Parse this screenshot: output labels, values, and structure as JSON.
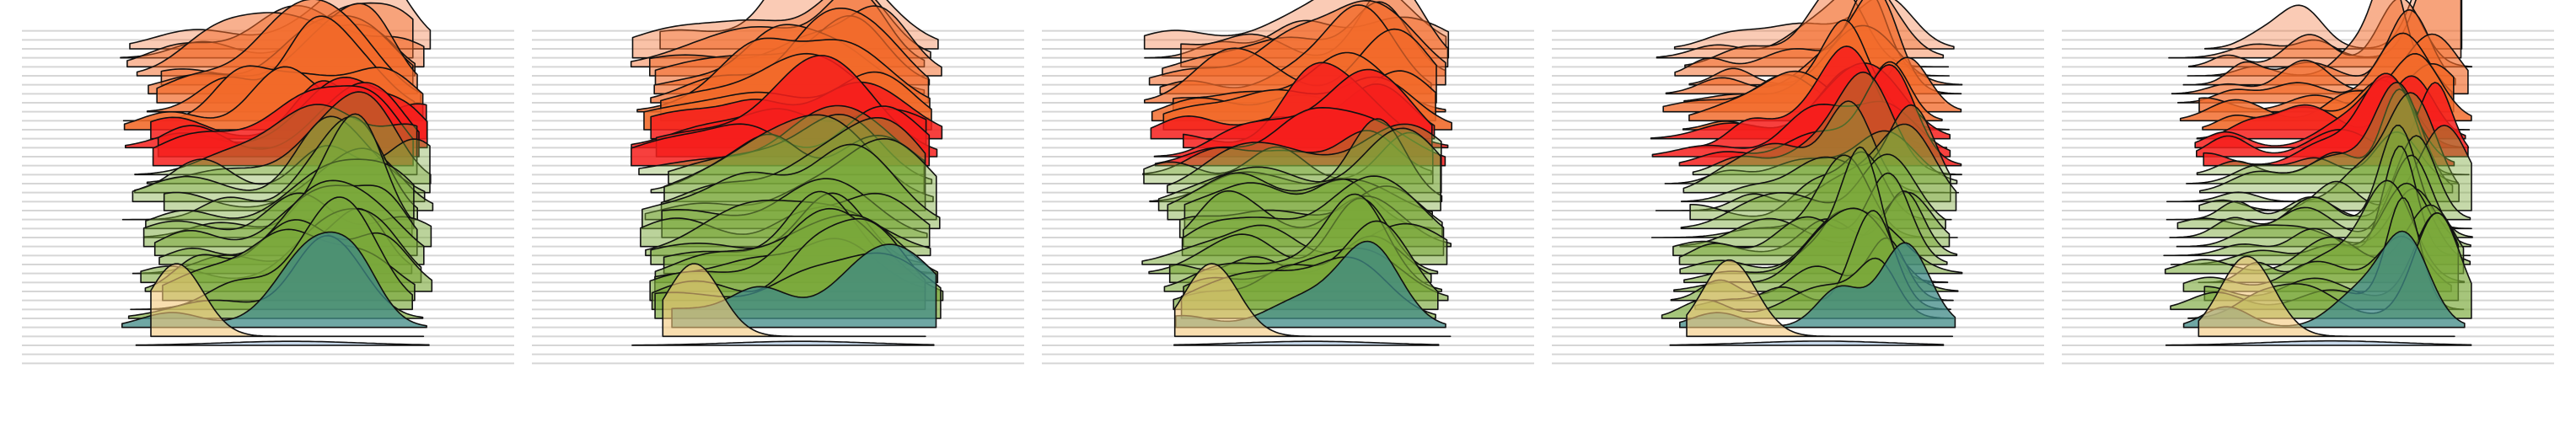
{
  "chart_data": {
    "type": "area",
    "variant": "ridgeline",
    "title": "",
    "xlabel": "",
    "ylabel": "",
    "grid": true,
    "legend": "none",
    "palette": {
      "orange": "#f26a2a",
      "red": "#f61f1c",
      "green": "#7aa83a",
      "teal": "#3f8a86",
      "sand": "#f3c87a",
      "blue": "#8fb1d6",
      "gridline": "#d6d6d6",
      "outline": "#111111"
    },
    "band_pattern": [
      "orange",
      "orange",
      "orange",
      "orange",
      "orange",
      "orange",
      "orange",
      "orange",
      "orange",
      "orange",
      "red",
      "red",
      "red",
      "red",
      "green",
      "green",
      "green",
      "green",
      "green",
      "green",
      "green",
      "green",
      "green",
      "green",
      "green",
      "green",
      "green",
      "green",
      "green",
      "green",
      "green",
      "teal",
      "sand",
      "blue"
    ],
    "panels": [
      {
        "xlim": [
          0,
          100
        ],
        "peak_scale": 1.0,
        "base": [
          {
            "mu": 62,
            "sd": 9,
            "h": 0.95
          },
          {
            "mu": 32,
            "sd": 8,
            "h": 0.35
          },
          {
            "mu": 80,
            "sd": 7,
            "h": 0.55
          }
        ]
      },
      {
        "xlim": [
          0,
          100
        ],
        "peak_scale": 1.0,
        "base": [
          {
            "mu": 70,
            "sd": 10,
            "h": 0.95
          },
          {
            "mu": 30,
            "sd": 12,
            "h": 0.35
          },
          {
            "mu": 50,
            "sd": 8,
            "h": 0.4
          }
        ]
      },
      {
        "xlim": [
          0,
          100
        ],
        "peak_scale": 1.0,
        "base": [
          {
            "mu": 72,
            "sd": 9,
            "h": 0.95
          },
          {
            "mu": 45,
            "sd": 9,
            "h": 0.45
          },
          {
            "mu": 25,
            "sd": 7,
            "h": 0.25
          }
        ]
      },
      {
        "xlim": [
          0,
          100
        ],
        "peak_scale": 1.05,
        "base": [
          {
            "mu": 70,
            "sd": 6,
            "h": 1.0
          },
          {
            "mu": 52,
            "sd": 7,
            "h": 0.5
          },
          {
            "mu": 30,
            "sd": 6,
            "h": 0.2
          }
        ]
      },
      {
        "xlim": [
          0,
          100
        ],
        "peak_scale": 1.1,
        "base": [
          {
            "mu": 77,
            "sd": 5,
            "h": 1.05
          },
          {
            "mu": 55,
            "sd": 6,
            "h": 0.35
          },
          {
            "mu": 28,
            "sd": 5,
            "h": 0.2
          }
        ]
      }
    ]
  }
}
